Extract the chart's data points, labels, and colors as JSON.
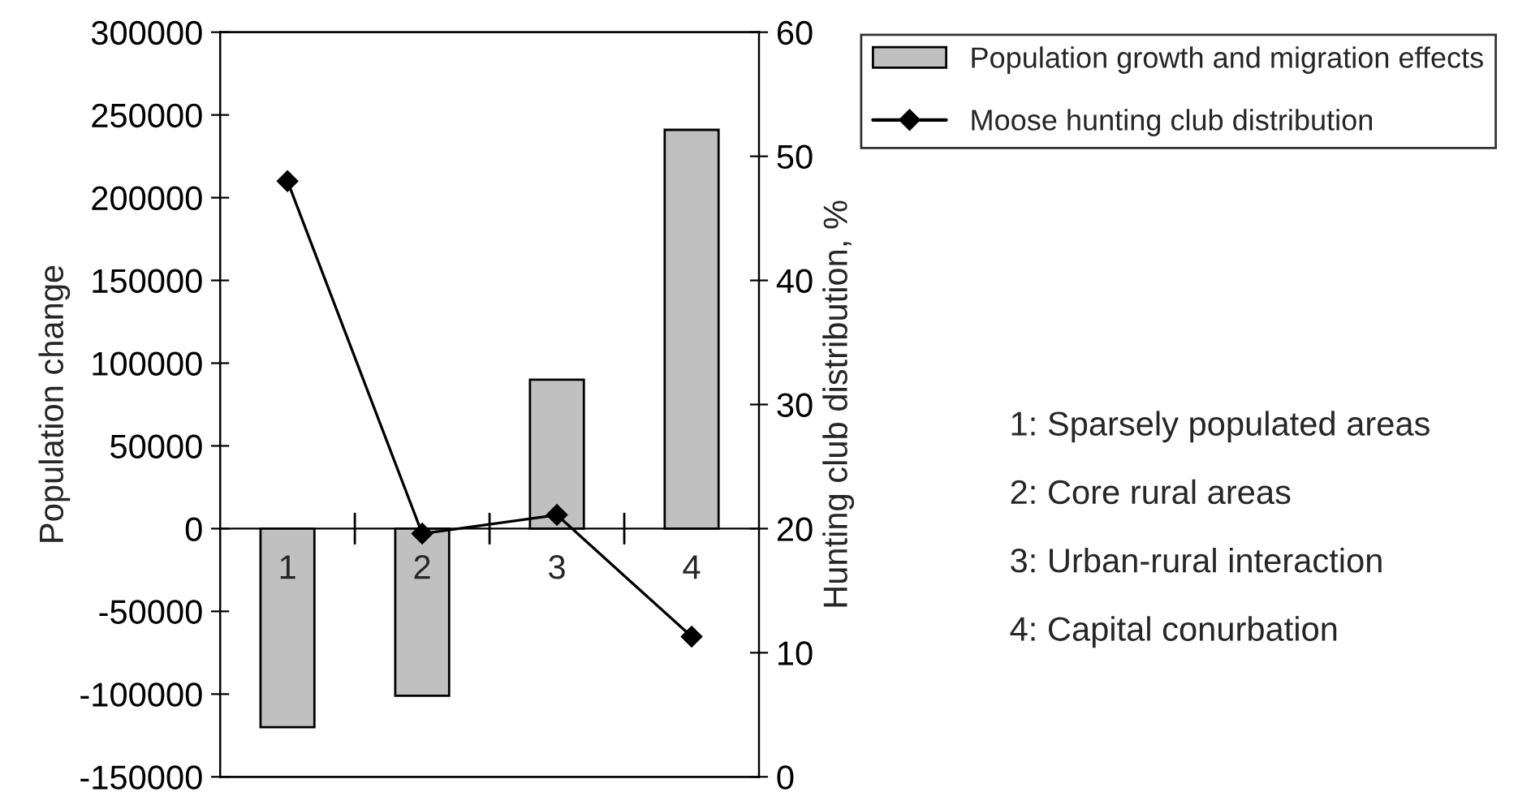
{
  "chart_data": {
    "type": "bar",
    "categories": [
      "1",
      "2",
      "3",
      "4"
    ],
    "ylabel": "Population change",
    "y2label": "Hunting club distribution, %",
    "series": [
      {
        "name": "Population growth and migration effects",
        "color": "#c0c0c0",
        "values": [
          -120000,
          -101000,
          90000,
          241000
        ]
      },
      {
        "name": "Moose hunting club distribution",
        "type": "line",
        "axis": "y2",
        "color": "#000000",
        "marker": "diamond",
        "values": [
          48,
          19.6,
          21.1,
          11.3
        ]
      }
    ],
    "ylim": [
      -150000,
      300000
    ],
    "yticks": [
      -150000,
      -100000,
      -50000,
      0,
      50000,
      100000,
      150000,
      200000,
      250000,
      300000
    ],
    "y2lim": [
      0,
      60
    ],
    "y2ticks": [
      0,
      10,
      20,
      30,
      40,
      50,
      60
    ],
    "legend": "top right",
    "grid": false,
    "annotations": [
      "1: Sparsely populated areas",
      "2: Core rural areas",
      "3: Urban-rural interaction",
      "4: Capital conurbation"
    ]
  }
}
